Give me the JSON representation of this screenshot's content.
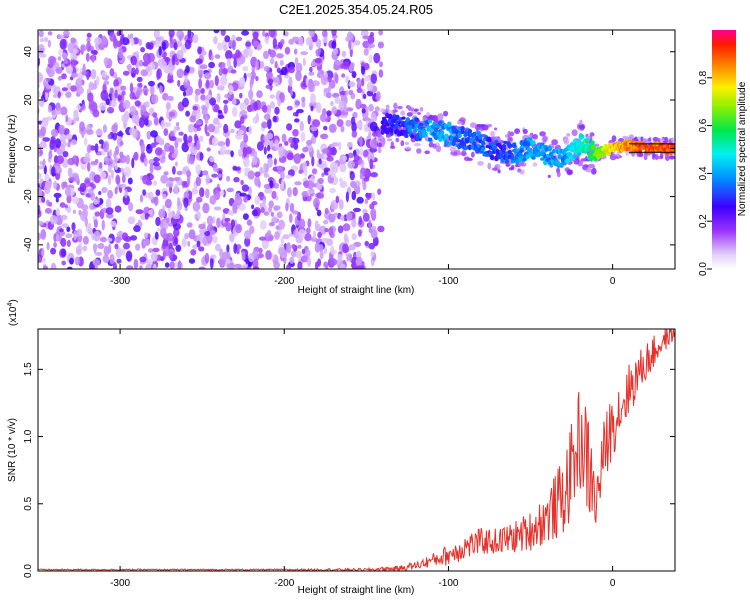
{
  "title": "C2E1.2025.354.05.24.R05",
  "chart_data": [
    {
      "type": "heatmap",
      "title": "",
      "xlabel": "Height of straight line (km)",
      "ylabel": "Frequency (Hz)",
      "xlim": [
        -350,
        38
      ],
      "ylim": [
        -50,
        49
      ],
      "xticks": [
        -300,
        -200,
        -100,
        0
      ],
      "xtick_labels": [
        "-300",
        "-200",
        "-100",
        "0"
      ],
      "yticks": [
        -40,
        -20,
        0,
        20,
        40
      ],
      "ytick_labels": [
        "-40",
        "-20",
        "0",
        "20",
        "40"
      ],
      "noise_region": {
        "x_range": [
          -350,
          -138
        ],
        "freq_range": [
          -50,
          49
        ],
        "level": 0.05
      },
      "ridge": {
        "x": [
          -140,
          -130,
          -120,
          -110,
          -100,
          -90,
          -80,
          -70,
          -60,
          -50,
          -40,
          -30,
          -25,
          -20,
          -15,
          -10,
          0,
          10,
          20,
          30,
          38
        ],
        "freq": [
          10,
          9,
          8,
          7,
          6,
          4,
          2,
          -1,
          -2,
          0,
          -3,
          -4,
          -1,
          2,
          0,
          -2,
          0,
          1,
          0,
          0,
          0
        ],
        "amplitude": [
          0.3,
          0.35,
          0.4,
          0.45,
          0.45,
          0.4,
          0.4,
          0.35,
          0.4,
          0.45,
          0.45,
          0.45,
          0.5,
          0.55,
          0.6,
          0.7,
          0.85,
          0.9,
          0.95,
          0.95,
          0.95
        ]
      },
      "colorbar": {
        "label": "Normalized spectral amplitude",
        "range": [
          0,
          1
        ],
        "ticks": [
          0,
          0.2,
          0.4,
          0.6,
          0.8
        ],
        "tick_labels": [
          "0.0",
          "0.2",
          "0.4",
          "0.6",
          "0.8"
        ]
      }
    },
    {
      "type": "line",
      "title": "",
      "xlabel": "Height of straight line (km)",
      "ylabel": "SNR (10 * v/v)",
      "scale_label": "(x10",
      "scale_exponent": "4",
      "scale_suffix": ")",
      "xlim": [
        -350,
        38
      ],
      "ylim": [
        0,
        1.8
      ],
      "xticks": [
        -300,
        -200,
        -100,
        0
      ],
      "xtick_labels": [
        "-300",
        "-200",
        "-100",
        "0"
      ],
      "yticks": [
        0,
        0.5,
        1.0,
        1.5
      ],
      "ytick_labels": [
        "0.0",
        "0.5",
        "1.0",
        "1.5"
      ],
      "series": [
        {
          "name": "SNR",
          "color": "#e8302a",
          "x": [
            -350,
            -300,
            -250,
            -200,
            -150,
            -130,
            -120,
            -110,
            -100,
            -90,
            -80,
            -70,
            -60,
            -50,
            -40,
            -30,
            -25,
            -20,
            -15,
            -12,
            -10,
            -5,
            0,
            10,
            20,
            30,
            38
          ],
          "y": [
            0.01,
            0.01,
            0.01,
            0.01,
            0.01,
            0.02,
            0.04,
            0.08,
            0.12,
            0.18,
            0.22,
            0.22,
            0.25,
            0.3,
            0.4,
            0.55,
            0.75,
            1.0,
            0.8,
            0.6,
            0.5,
            0.9,
            1.1,
            1.35,
            1.55,
            1.7,
            1.78
          ],
          "spread": [
            0.005,
            0.005,
            0.005,
            0.005,
            0.01,
            0.02,
            0.03,
            0.05,
            0.08,
            0.1,
            0.1,
            0.1,
            0.12,
            0.15,
            0.2,
            0.3,
            0.35,
            0.4,
            0.4,
            0.3,
            0.2,
            0.25,
            0.25,
            0.2,
            0.15,
            0.1,
            0.05
          ]
        }
      ]
    }
  ]
}
